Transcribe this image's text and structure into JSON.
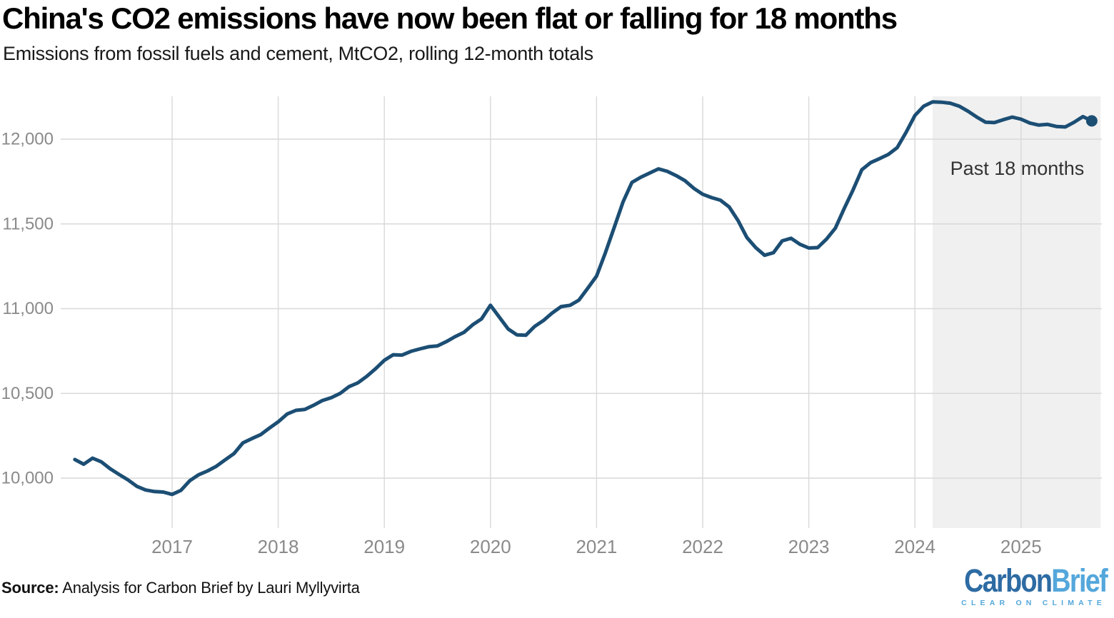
{
  "header": {
    "title": "China's CO2 emissions have now been flat or falling for 18 months",
    "subtitle": "Emissions from fossil fuels and cement, MtCO2, rolling 12-month totals"
  },
  "footer": {
    "source_label": "Source:",
    "source_text": "Analysis for Carbon Brief by Lauri Myllyvirta"
  },
  "logo": {
    "part1": "Carbon",
    "part2": "Brief",
    "tagline": "CLEAR ON CLIMATE"
  },
  "colors": {
    "line": "#1c4e74",
    "shade": "#f0f0f0",
    "grid": "#d9d9d9",
    "axis_text": "#8a8a8a",
    "annotation_text": "#333333",
    "logo_dark": "#2d6ba3",
    "logo_light": "#54a7db",
    "title_text": "#000000"
  },
  "chart_data": {
    "type": "line",
    "title": "China's CO2 emissions have now been flat or falling for 18 months",
    "subtitle": "Emissions from fossil fuels and cement, MtCO2, rolling 12-month totals",
    "xlabel": "",
    "ylabel": "MtCO2 (rolling 12-month totals)",
    "grid": true,
    "legend": false,
    "ylim": [
      9700,
      12250
    ],
    "x_ticks": [
      {
        "year": 2017,
        "label": "2017"
      },
      {
        "year": 2018,
        "label": "2018"
      },
      {
        "year": 2019,
        "label": "2019"
      },
      {
        "year": 2020,
        "label": "2020"
      },
      {
        "year": 2021,
        "label": "2021"
      },
      {
        "year": 2022,
        "label": "2022"
      },
      {
        "year": 2023,
        "label": "2023"
      },
      {
        "year": 2024,
        "label": "2024"
      },
      {
        "year": 2025,
        "label": "2025"
      }
    ],
    "y_ticks": [
      {
        "value": 10000,
        "label": "10,000"
      },
      {
        "value": 10500,
        "label": "10,500"
      },
      {
        "value": 11000,
        "label": "11,000"
      },
      {
        "value": 11500,
        "label": "11,500"
      },
      {
        "value": 12000,
        "label": "12,000"
      }
    ],
    "shade": {
      "label": "Past 18 months",
      "start": "2024-03",
      "end": "2025-10"
    },
    "series": [
      {
        "name": "China CO2 emissions from fossil fuels and cement, MtCO2, rolling 12-month total",
        "marker_on_last_point": true,
        "points": [
          [
            "2016-02",
            10110
          ],
          [
            "2016-03",
            10082
          ],
          [
            "2016-04",
            10118
          ],
          [
            "2016-05",
            10096
          ],
          [
            "2016-06",
            10055
          ],
          [
            "2016-07",
            10022
          ],
          [
            "2016-08",
            9990
          ],
          [
            "2016-09",
            9952
          ],
          [
            "2016-10",
            9930
          ],
          [
            "2016-11",
            9921
          ],
          [
            "2016-12",
            9918
          ],
          [
            "2017-01",
            9904
          ],
          [
            "2017-02",
            9928
          ],
          [
            "2017-03",
            9985
          ],
          [
            "2017-04",
            10020
          ],
          [
            "2017-05",
            10042
          ],
          [
            "2017-06",
            10070
          ],
          [
            "2017-07",
            10108
          ],
          [
            "2017-08",
            10145
          ],
          [
            "2017-09",
            10208
          ],
          [
            "2017-10",
            10233
          ],
          [
            "2017-11",
            10256
          ],
          [
            "2017-12",
            10295
          ],
          [
            "2018-01",
            10332
          ],
          [
            "2018-02",
            10378
          ],
          [
            "2018-03",
            10400
          ],
          [
            "2018-04",
            10405
          ],
          [
            "2018-05",
            10430
          ],
          [
            "2018-06",
            10458
          ],
          [
            "2018-07",
            10475
          ],
          [
            "2018-08",
            10500
          ],
          [
            "2018-09",
            10540
          ],
          [
            "2018-10",
            10562
          ],
          [
            "2018-11",
            10600
          ],
          [
            "2018-12",
            10645
          ],
          [
            "2019-01",
            10695
          ],
          [
            "2019-02",
            10728
          ],
          [
            "2019-03",
            10726
          ],
          [
            "2019-04",
            10748
          ],
          [
            "2019-05",
            10762
          ],
          [
            "2019-06",
            10775
          ],
          [
            "2019-07",
            10780
          ],
          [
            "2019-08",
            10805
          ],
          [
            "2019-09",
            10835
          ],
          [
            "2019-10",
            10860
          ],
          [
            "2019-11",
            10905
          ],
          [
            "2019-12",
            10940
          ],
          [
            "2020-01",
            11020
          ],
          [
            "2020-02",
            10950
          ],
          [
            "2020-03",
            10880
          ],
          [
            "2020-04",
            10845
          ],
          [
            "2020-05",
            10843
          ],
          [
            "2020-06",
            10895
          ],
          [
            "2020-07",
            10930
          ],
          [
            "2020-08",
            10975
          ],
          [
            "2020-09",
            11012
          ],
          [
            "2020-10",
            11020
          ],
          [
            "2020-11",
            11050
          ],
          [
            "2020-12",
            11120
          ],
          [
            "2021-01",
            11192
          ],
          [
            "2021-02",
            11330
          ],
          [
            "2021-03",
            11480
          ],
          [
            "2021-04",
            11630
          ],
          [
            "2021-05",
            11745
          ],
          [
            "2021-06",
            11775
          ],
          [
            "2021-07",
            11800
          ],
          [
            "2021-08",
            11825
          ],
          [
            "2021-09",
            11810
          ],
          [
            "2021-10",
            11785
          ],
          [
            "2021-11",
            11755
          ],
          [
            "2021-12",
            11710
          ],
          [
            "2022-01",
            11675
          ],
          [
            "2022-02",
            11655
          ],
          [
            "2022-03",
            11640
          ],
          [
            "2022-04",
            11600
          ],
          [
            "2022-05",
            11520
          ],
          [
            "2022-06",
            11420
          ],
          [
            "2022-07",
            11360
          ],
          [
            "2022-08",
            11315
          ],
          [
            "2022-09",
            11330
          ],
          [
            "2022-10",
            11400
          ],
          [
            "2022-11",
            11415
          ],
          [
            "2022-12",
            11380
          ],
          [
            "2023-01",
            11358
          ],
          [
            "2023-02",
            11360
          ],
          [
            "2023-03",
            11410
          ],
          [
            "2023-04",
            11475
          ],
          [
            "2023-05",
            11590
          ],
          [
            "2023-06",
            11700
          ],
          [
            "2023-07",
            11820
          ],
          [
            "2023-08",
            11862
          ],
          [
            "2023-09",
            11885
          ],
          [
            "2023-10",
            11910
          ],
          [
            "2023-11",
            11950
          ],
          [
            "2023-12",
            12040
          ],
          [
            "2024-01",
            12140
          ],
          [
            "2024-02",
            12195
          ],
          [
            "2024-03",
            12220
          ],
          [
            "2024-04",
            12218
          ],
          [
            "2024-05",
            12212
          ],
          [
            "2024-06",
            12195
          ],
          [
            "2024-07",
            12165
          ],
          [
            "2024-08",
            12130
          ],
          [
            "2024-09",
            12100
          ],
          [
            "2024-10",
            12098
          ],
          [
            "2024-11",
            12115
          ],
          [
            "2024-12",
            12130
          ],
          [
            "2025-01",
            12118
          ],
          [
            "2025-02",
            12095
          ],
          [
            "2025-03",
            12083
          ],
          [
            "2025-04",
            12087
          ],
          [
            "2025-05",
            12075
          ],
          [
            "2025-06",
            12072
          ],
          [
            "2025-07",
            12100
          ],
          [
            "2025-08",
            12133
          ],
          [
            "2025-09",
            12108
          ]
        ]
      }
    ]
  }
}
